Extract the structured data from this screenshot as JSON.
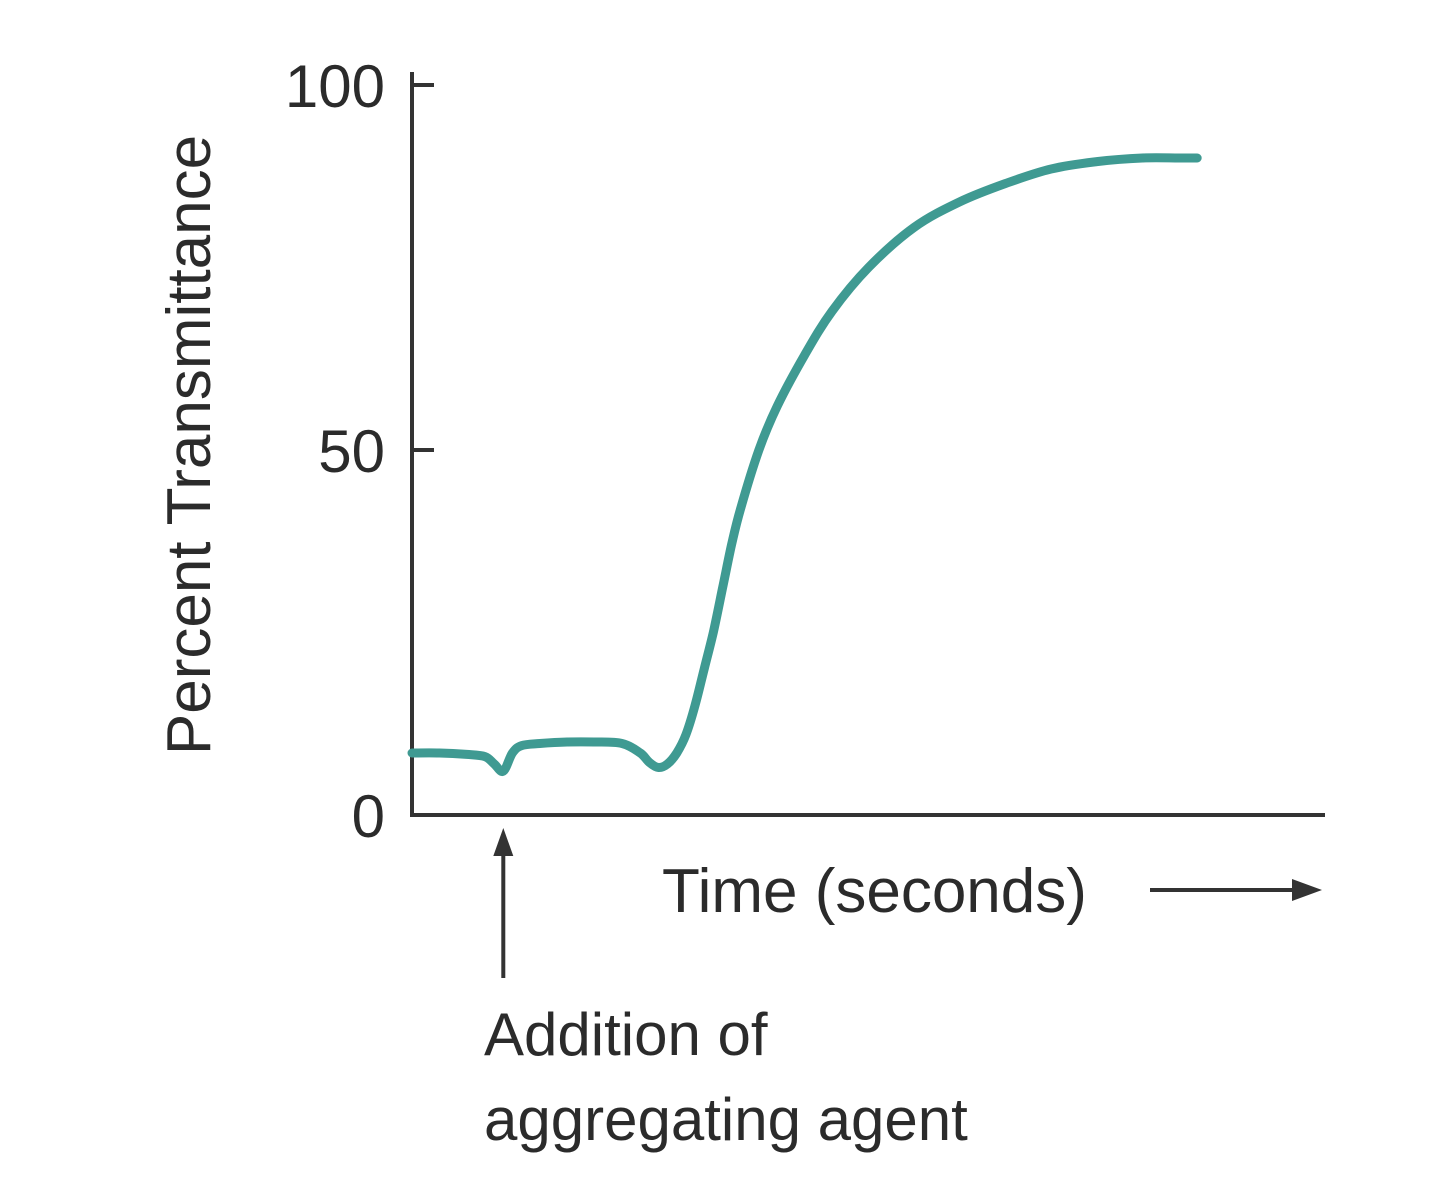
{
  "chart_data": {
    "type": "line",
    "title": "",
    "xlabel": "Time (seconds)",
    "ylabel": "Percent Transmittance",
    "ylim": [
      0,
      100
    ],
    "xlim": [
      0,
      100
    ],
    "y_ticks": [
      "0",
      "50",
      "100"
    ],
    "grid": false,
    "legend": "none",
    "line_color": "#3f9a92",
    "annotation": {
      "lines": [
        "Addition of",
        "aggregating agent"
      ],
      "x": 10
    },
    "series": [
      {
        "x": [
          0,
          3,
          6,
          8,
          9,
          10,
          11,
          12,
          14,
          17,
          20,
          23,
          25,
          26,
          27,
          28,
          29,
          30,
          31,
          32,
          33,
          34,
          35,
          36,
          38,
          40,
          43,
          46,
          50,
          55,
          60,
          65,
          70,
          75,
          80,
          84,
          86
        ],
        "values": [
          8.5,
          8.5,
          8.3,
          8.0,
          7.0,
          6.0,
          8.5,
          9.5,
          9.8,
          10.0,
          10.0,
          9.8,
          8.5,
          7.2,
          6.5,
          7.0,
          8.5,
          11.0,
          15.0,
          20.0,
          25.0,
          31.0,
          37.0,
          42.0,
          50.0,
          56.0,
          63.0,
          69.0,
          75.0,
          80.5,
          84.0,
          86.5,
          88.5,
          89.5,
          90.0,
          90.0,
          90.0
        ]
      }
    ]
  }
}
